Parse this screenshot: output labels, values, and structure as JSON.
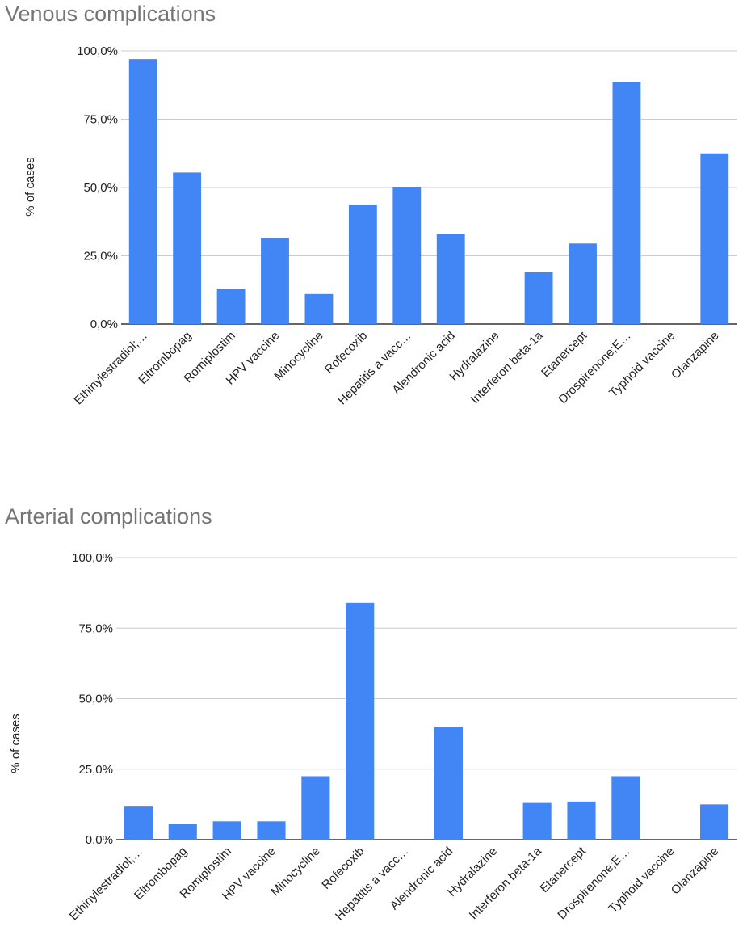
{
  "chart_data": [
    {
      "type": "bar",
      "title": "Venous complications",
      "xlabel": "",
      "ylabel": "% of cases",
      "ylim": [
        0,
        100
      ],
      "yticks": [
        "0,0%",
        "25,0%",
        "50,0%",
        "75,0%",
        "100,0%"
      ],
      "grid": true,
      "bar_color": "#4285f4",
      "categories": [
        "Ethinylestradiol;…",
        "Eltrombopag",
        "Romiplostim",
        "HPV vaccine",
        "Minocycline",
        "Rofecoxib",
        "Hepatitis a vacc…",
        "Alendronic acid",
        "Hydralazine",
        "Interferon beta-1a",
        "Etanercept",
        "Drospirenone;E…",
        "Typhoid vaccine",
        "Olanzapine"
      ],
      "values": [
        97,
        55.5,
        13,
        31.5,
        11,
        43.5,
        50,
        33,
        0,
        19,
        29.5,
        88.5,
        0,
        62.5
      ]
    },
    {
      "type": "bar",
      "title": "Arterial complications",
      "xlabel": "",
      "ylabel": "% of cases",
      "ylim": [
        0,
        100
      ],
      "yticks": [
        "0,0%",
        "25,0%",
        "50,0%",
        "75,0%",
        "100,0%"
      ],
      "grid": true,
      "bar_color": "#4285f4",
      "categories": [
        "Ethinylestradiol;…",
        "Eltrombopag",
        "Romiplostim",
        "HPV vaccine",
        "Minocycline",
        "Rofecoxib",
        "Hepatitis a vacc…",
        "Alendronic acid",
        "Hydralazine",
        "Interferon beta-1a",
        "Etanercept",
        "Drospirenone;E…",
        "Typhoid vaccine",
        "Olanzapine"
      ],
      "values": [
        12,
        5.5,
        6.5,
        6.5,
        22.5,
        84,
        0,
        40,
        0,
        13,
        13.5,
        22.5,
        0,
        12.5
      ]
    }
  ]
}
